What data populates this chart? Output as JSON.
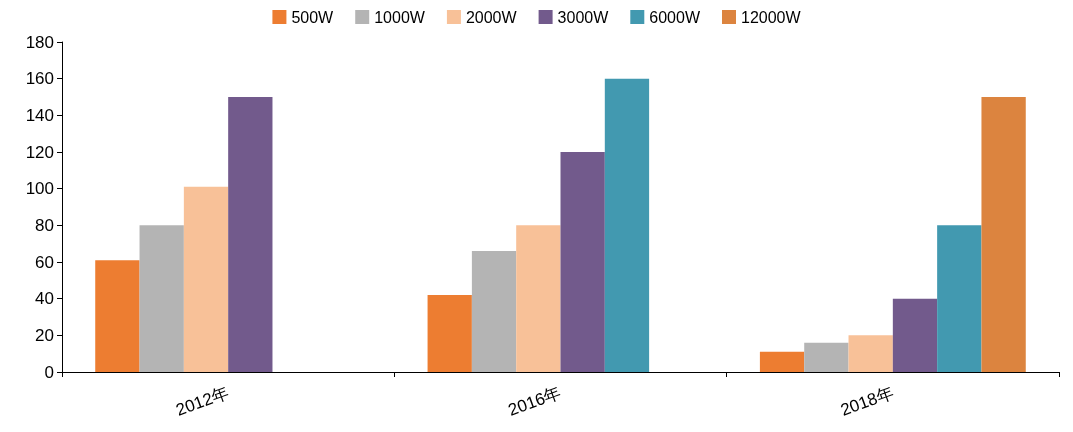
{
  "chart_data": {
    "type": "bar",
    "categories": [
      "2012年",
      "2016年",
      "2018年"
    ],
    "series": [
      {
        "name": "500W",
        "color": "#ed7d31",
        "values": [
          61,
          42,
          11
        ]
      },
      {
        "name": "1000W",
        "color": "#b4b4b4",
        "values": [
          80,
          66,
          16
        ]
      },
      {
        "name": "2000W",
        "color": "#f8c198",
        "values": [
          101,
          80,
          20
        ]
      },
      {
        "name": "3000W",
        "color": "#725a8c",
        "values": [
          150,
          120,
          40
        ]
      },
      {
        "name": "6000W",
        "color": "#4299b0",
        "values": [
          null,
          160,
          80
        ]
      },
      {
        "name": "12000W",
        "color": "#dc843f",
        "values": [
          null,
          null,
          150
        ]
      }
    ],
    "ylim": [
      0,
      180
    ],
    "yticks": [
      0,
      20,
      40,
      60,
      80,
      100,
      120,
      140,
      160,
      180
    ],
    "grid": false,
    "legend": "top"
  }
}
